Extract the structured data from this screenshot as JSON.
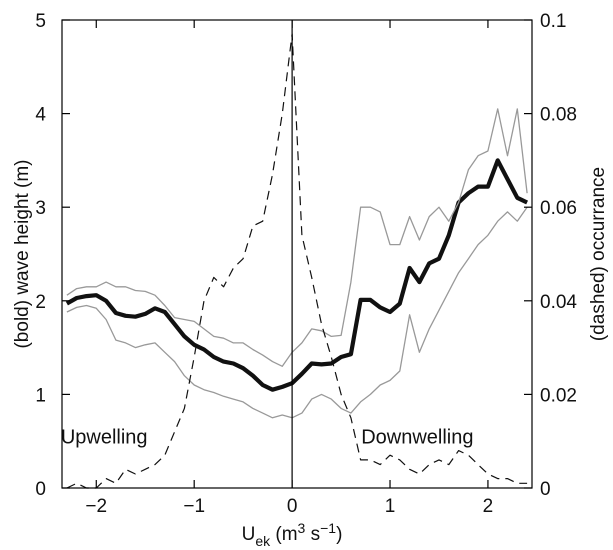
{
  "chart_data": {
    "type": "line",
    "xlabel": {
      "base": "U",
      "sub": "ek",
      "units_open": " (m",
      "units_sup1": "3",
      "units_mid": " s",
      "units_sup2": "−1",
      "units_close": ")"
    },
    "ylabel_left": "(bold) wave height (m)",
    "ylabel_right": "(dashed) occurrance",
    "xlim": [
      -2.35,
      2.45
    ],
    "ylim_left": [
      0,
      5
    ],
    "ylim_right": [
      0,
      0.1
    ],
    "x_ticks": [
      {
        "value": -2,
        "label": "−2"
      },
      {
        "value": -1,
        "label": "−1"
      },
      {
        "value": 0,
        "label": "0"
      },
      {
        "value": 1,
        "label": "1"
      },
      {
        "value": 2,
        "label": "2"
      }
    ],
    "y_left_ticks": [
      {
        "value": 0,
        "label": "0"
      },
      {
        "value": 1,
        "label": "1"
      },
      {
        "value": 2,
        "label": "2"
      },
      {
        "value": 3,
        "label": "3"
      },
      {
        "value": 4,
        "label": "4"
      },
      {
        "value": 5,
        "label": "5"
      }
    ],
    "y_right_ticks": [
      {
        "value": 0,
        "label": "0"
      },
      {
        "value": 0.02,
        "label": "0.02"
      },
      {
        "value": 0.04,
        "label": "0.04"
      },
      {
        "value": 0.06,
        "label": "0.06"
      },
      {
        "value": 0.08,
        "label": "0.08"
      },
      {
        "value": 0.1,
        "label": "0.1"
      }
    ],
    "vertical_line_x": 0,
    "annotations": [
      {
        "text": "Upwelling",
        "x": -1.8,
        "y": 0.55
      },
      {
        "text": "Downwelling",
        "x": 1.4,
        "y": 0.55
      }
    ],
    "series": [
      {
        "axis": "left",
        "style": "bold",
        "x": [
          -2.3,
          -2.2,
          -2.1,
          -2.0,
          -1.9,
          -1.8,
          -1.7,
          -1.6,
          -1.5,
          -1.4,
          -1.3,
          -1.2,
          -1.1,
          -1.0,
          -0.9,
          -0.8,
          -0.7,
          -0.6,
          -0.5,
          -0.4,
          -0.3,
          -0.2,
          -0.1,
          0.0,
          0.1,
          0.2,
          0.3,
          0.4,
          0.5,
          0.6,
          0.7,
          0.8,
          0.9,
          1.0,
          1.1,
          1.2,
          1.3,
          1.4,
          1.5,
          1.6,
          1.7,
          1.8,
          1.9,
          2.0,
          2.1,
          2.2,
          2.3,
          2.4
        ],
        "values": [
          1.97,
          2.03,
          2.05,
          2.06,
          2.0,
          1.87,
          1.84,
          1.83,
          1.86,
          1.92,
          1.88,
          1.75,
          1.62,
          1.53,
          1.48,
          1.4,
          1.35,
          1.33,
          1.28,
          1.2,
          1.1,
          1.05,
          1.08,
          1.12,
          1.22,
          1.33,
          1.32,
          1.33,
          1.4,
          1.43,
          2.01,
          2.01,
          1.93,
          1.88,
          1.97,
          2.35,
          2.2,
          2.4,
          2.45,
          2.7,
          3.05,
          3.15,
          3.22,
          3.22,
          3.5,
          3.3,
          3.1,
          3.05
        ]
      },
      {
        "axis": "left",
        "style": "thin-upper",
        "x": [
          -2.3,
          -2.2,
          -2.1,
          -2.0,
          -1.9,
          -1.8,
          -1.7,
          -1.6,
          -1.5,
          -1.4,
          -1.3,
          -1.2,
          -1.1,
          -1.0,
          -0.9,
          -0.8,
          -0.7,
          -0.6,
          -0.5,
          -0.4,
          -0.3,
          -0.2,
          -0.1,
          0.0,
          0.1,
          0.2,
          0.3,
          0.4,
          0.5,
          0.6,
          0.7,
          0.8,
          0.9,
          1.0,
          1.1,
          1.2,
          1.3,
          1.4,
          1.5,
          1.6,
          1.7,
          1.8,
          1.9,
          2.0,
          2.1,
          2.2,
          2.3,
          2.4
        ],
        "values": [
          2.06,
          2.13,
          2.15,
          2.15,
          2.2,
          2.15,
          2.15,
          2.11,
          2.1,
          2.06,
          1.95,
          1.82,
          1.8,
          1.78,
          1.7,
          1.62,
          1.6,
          1.55,
          1.55,
          1.48,
          1.42,
          1.35,
          1.3,
          1.45,
          1.55,
          1.7,
          1.68,
          1.62,
          1.63,
          2.2,
          3.0,
          3.0,
          2.95,
          2.6,
          2.6,
          2.9,
          2.65,
          2.9,
          3.0,
          2.85,
          3.05,
          3.4,
          3.55,
          3.6,
          4.05,
          3.55,
          4.05,
          3.15
        ]
      },
      {
        "axis": "left",
        "style": "thin-lower",
        "x": [
          -2.3,
          -2.2,
          -2.1,
          -2.0,
          -1.9,
          -1.8,
          -1.7,
          -1.6,
          -1.5,
          -1.4,
          -1.3,
          -1.2,
          -1.1,
          -1.0,
          -0.9,
          -0.8,
          -0.7,
          -0.6,
          -0.5,
          -0.4,
          -0.3,
          -0.2,
          -0.1,
          0.0,
          0.1,
          0.2,
          0.3,
          0.4,
          0.5,
          0.6,
          0.7,
          0.8,
          0.9,
          1.0,
          1.1,
          1.2,
          1.3,
          1.4,
          1.5,
          1.6,
          1.7,
          1.8,
          1.9,
          2.0,
          2.1,
          2.2,
          2.3,
          2.4
        ],
        "values": [
          1.88,
          1.93,
          1.95,
          1.92,
          1.8,
          1.58,
          1.55,
          1.5,
          1.53,
          1.55,
          1.45,
          1.35,
          1.2,
          1.1,
          1.05,
          1.02,
          0.98,
          0.95,
          0.92,
          0.85,
          0.8,
          0.75,
          0.78,
          0.75,
          0.8,
          0.95,
          1.0,
          0.95,
          0.85,
          0.8,
          0.92,
          1.0,
          1.1,
          1.15,
          1.25,
          1.85,
          1.45,
          1.7,
          1.9,
          2.1,
          2.3,
          2.45,
          2.6,
          2.7,
          2.85,
          2.95,
          2.85,
          3.0
        ]
      },
      {
        "axis": "right",
        "style": "dashed",
        "x": [
          -2.3,
          -2.2,
          -2.1,
          -2.0,
          -1.9,
          -1.8,
          -1.7,
          -1.6,
          -1.5,
          -1.4,
          -1.3,
          -1.2,
          -1.1,
          -1.0,
          -0.9,
          -0.8,
          -0.7,
          -0.6,
          -0.5,
          -0.4,
          -0.3,
          -0.2,
          -0.1,
          0.0,
          0.1,
          0.2,
          0.3,
          0.4,
          0.5,
          0.6,
          0.7,
          0.8,
          0.9,
          1.0,
          1.1,
          1.2,
          1.3,
          1.4,
          1.5,
          1.6,
          1.7,
          1.8,
          1.9,
          2.0,
          2.1,
          2.2,
          2.3,
          2.4
        ],
        "values": [
          0.0,
          0.001,
          0.0,
          0.0,
          0.002,
          0.001,
          0.004,
          0.003,
          0.004,
          0.005,
          0.007,
          0.012,
          0.017,
          0.028,
          0.04,
          0.045,
          0.043,
          0.047,
          0.049,
          0.056,
          0.057,
          0.067,
          0.08,
          0.097,
          0.054,
          0.045,
          0.035,
          0.028,
          0.02,
          0.015,
          0.006,
          0.006,
          0.005,
          0.007,
          0.006,
          0.004,
          0.003,
          0.005,
          0.006,
          0.005,
          0.008,
          0.007,
          0.005,
          0.003,
          0.002,
          0.002,
          0.001,
          0.001
        ]
      }
    ]
  }
}
